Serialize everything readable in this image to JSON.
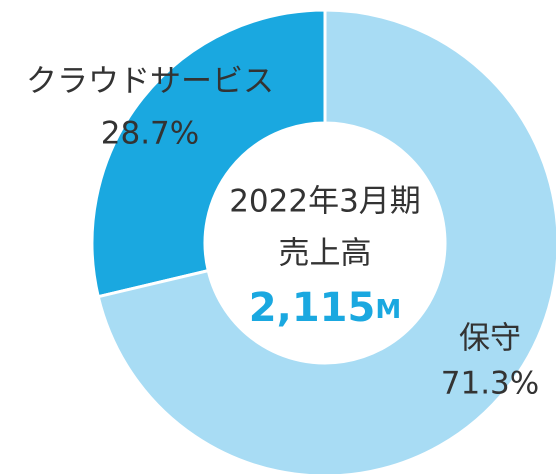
{
  "chart_data": {
    "type": "pie",
    "donut": true,
    "categories": [
      "クラウドサービス",
      "保守"
    ],
    "values": [
      28.7,
      71.3
    ],
    "value_labels": [
      "28.7%",
      "71.3%"
    ],
    "colors": [
      "#1aa8e0",
      "#a8dcf4"
    ],
    "center_title": [
      "2022年3月期",
      "売上高"
    ],
    "center_value": "2,115",
    "center_unit": "M"
  }
}
